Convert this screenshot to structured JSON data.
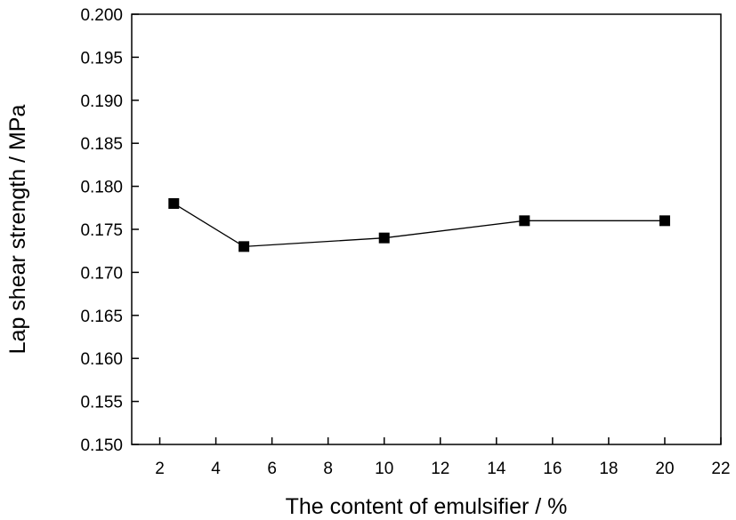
{
  "chart_data": {
    "type": "line",
    "title": "",
    "xlabel": "The content of emulsifier  / %",
    "ylabel": "Lap shear strength  / MPa",
    "xlim": [
      1,
      22
    ],
    "ylim": [
      0.15,
      0.2
    ],
    "x_ticks": [
      "2",
      "4",
      "6",
      "8",
      "10",
      "12",
      "14",
      "16",
      "18",
      "20",
      "22"
    ],
    "y_ticks": [
      "0.150",
      "0.155",
      "0.160",
      "0.165",
      "0.170",
      "0.175",
      "0.180",
      "0.185",
      "0.190",
      "0.195",
      "0.200"
    ],
    "grid": false,
    "legend": "none",
    "series": [
      {
        "x": [
          2.5,
          5,
          10,
          15,
          20
        ],
        "y": [
          0.178,
          0.173,
          0.174,
          0.176,
          0.176
        ],
        "marker": "square",
        "color": "#000000"
      }
    ]
  }
}
